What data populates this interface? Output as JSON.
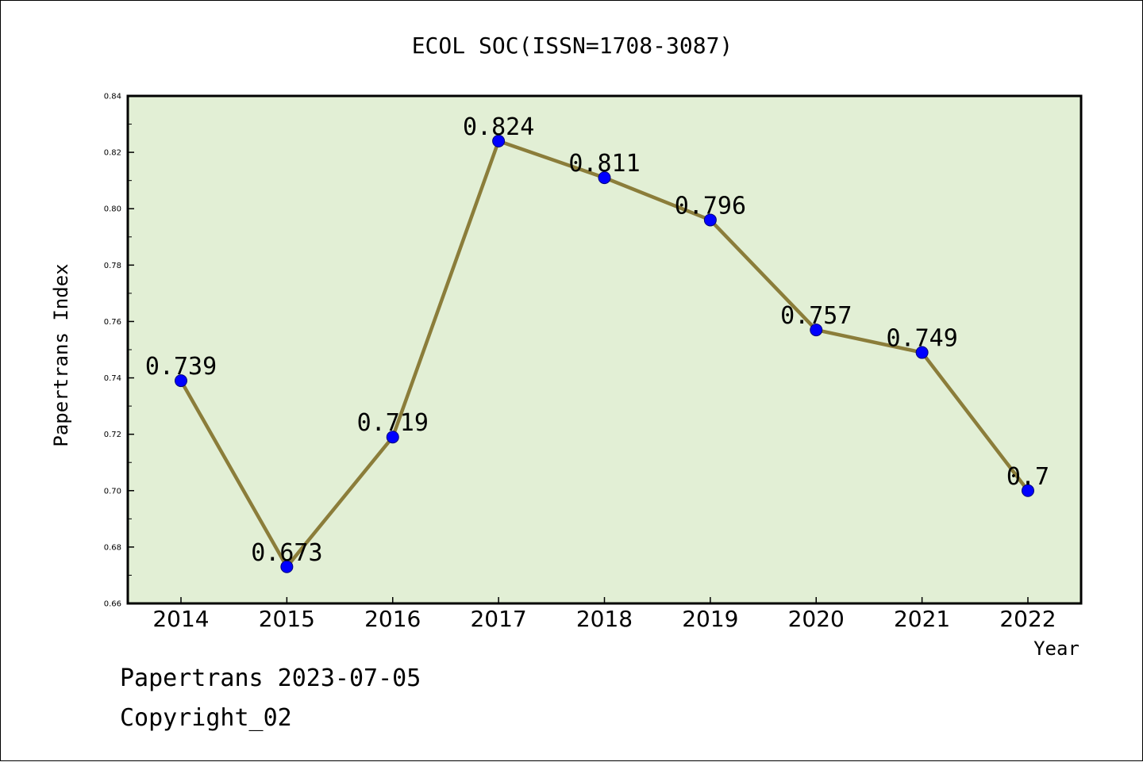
{
  "chart_data": {
    "type": "line",
    "title": "ECOL SOC(ISSN=1708-3087)",
    "xlabel": "Year",
    "ylabel": "Papertrans Index",
    "categories": [
      "2014",
      "2015",
      "2016",
      "2017",
      "2018",
      "2019",
      "2020",
      "2021",
      "2022"
    ],
    "series": [
      {
        "values": [
          0.739,
          0.673,
          0.719,
          0.824,
          0.811,
          0.796,
          0.757,
          0.749,
          0.7
        ],
        "labels": [
          "0.739",
          "0.673",
          "0.719",
          "0.824",
          "0.811",
          "0.796",
          "0.757",
          "0.749",
          "0.7"
        ]
      }
    ],
    "ylim": [
      0.66,
      0.84
    ],
    "yticks": [
      "0.66",
      "0.68",
      "0.70",
      "0.72",
      "0.74",
      "0.76",
      "0.78",
      "0.80",
      "0.82",
      "0.84"
    ],
    "grid": false,
    "colors": {
      "line": "#8B7D3A",
      "marker": "#0000FF",
      "plot_background": "#E2EFD5"
    }
  },
  "footer": {
    "line1": "Papertrans 2023-07-05",
    "line2": "Copyright_02"
  }
}
